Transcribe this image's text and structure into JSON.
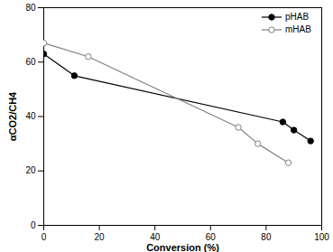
{
  "chart_data": {
    "type": "line",
    "x_label": "Conversion (%)",
    "y_label": "αCO2/CH4",
    "xlim": [
      0,
      100
    ],
    "xticks": [
      0,
      20,
      40,
      60,
      80,
      100
    ],
    "ylim": [
      0,
      80
    ],
    "yticks": [
      0,
      20,
      40,
      60,
      80
    ],
    "legend": "top-right",
    "series": [
      {
        "name": "pHAB",
        "color": "#000000",
        "marker": "filled_circle",
        "x": [
          0,
          11,
          86,
          90,
          96
        ],
        "values": [
          63,
          55,
          38,
          35,
          31
        ]
      },
      {
        "name": "mHAB",
        "color": "#808080",
        "marker": "open_circle",
        "x": [
          0,
          16,
          70,
          77,
          88
        ],
        "values": [
          67,
          62,
          36,
          30,
          23
        ]
      }
    ]
  }
}
